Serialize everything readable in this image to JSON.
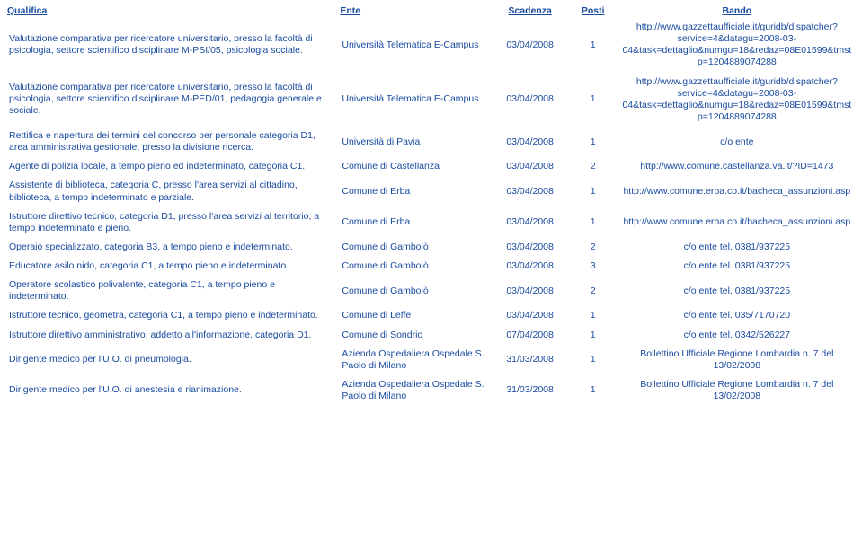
{
  "headers": {
    "qualifica": "Qualifica",
    "ente": "Ente",
    "scadenza": "Scadenza",
    "posti": "Posti",
    "bando": "Bando"
  },
  "rows": [
    {
      "qualifica": "Valutazione comparativa per ricercatore universitario, presso la facoltà di psicologia, settore scientifico disciplinare M-PSI/05, psicologia sociale.",
      "ente": "Università Telematica E-Campus",
      "scadenza": "03/04/2008",
      "posti": "1",
      "bando": "http://www.gazzettaufficiale.it/guridb/dispatcher?service=4&datagu=2008-03-04&task=dettaglio&numgu=18&redaz=08E01599&tmstp=1204889074288"
    },
    {
      "qualifica": "Valutazione comparativa per ricercatore universitario, presso la facoltà di psicologia, settore scientifico disciplinare M-PED/01, pedagogia generale e sociale.",
      "ente": "Università Telematica E-Campus",
      "scadenza": "03/04/2008",
      "posti": "1",
      "bando": "http://www.gazzettaufficiale.it/guridb/dispatcher?service=4&datagu=2008-03-04&task=dettaglio&numgu=18&redaz=08E01599&tmstp=1204889074288"
    },
    {
      "qualifica": "Rettifica e riapertura dei termini del concorso per personale categoria D1, area amministrativa gestionale, presso la divisione ricerca.",
      "ente": "Università di Pavia",
      "scadenza": "03/04/2008",
      "posti": "1",
      "bando": "c/o ente"
    },
    {
      "qualifica": "Agente di polizia locale, a tempo pieno ed indeterminato, categoria C1.",
      "ente": "Comune di Castellanza",
      "scadenza": "03/04/2008",
      "posti": "2",
      "bando": "http://www.comune.castellanza.va.it/?ID=1473"
    },
    {
      "qualifica": "Assistente di biblioteca, categoria C, presso l'area servizi al cittadino, biblioteca, a tempo indeterminato e parziale.",
      "ente": "Comune di Erba",
      "scadenza": "03/04/2008",
      "posti": "1",
      "bando": "http://www.comune.erba.co.it/bacheca_assunzioni.asp"
    },
    {
      "qualifica": "Istruttore direttivo tecnico, categoria D1, presso l'area servizi al territorio, a tempo indeterminato e pieno.",
      "ente": "Comune di Erba",
      "scadenza": "03/04/2008",
      "posti": "1",
      "bando": "http://www.comune.erba.co.it/bacheca_assunzioni.asp"
    },
    {
      "qualifica": "Operaio specializzato, categoria B3, a tempo pieno e indeterminato.",
      "ente": "Comune di Gambolò",
      "scadenza": "03/04/2008",
      "posti": "2",
      "bando": "c/o ente tel. 0381/937225"
    },
    {
      "qualifica": "Educatore asilo nido, categoria C1, a tempo pieno e indeterminato.",
      "ente": "Comune di Gambolò",
      "scadenza": "03/04/2008",
      "posti": "3",
      "bando": "c/o ente tel. 0381/937225"
    },
    {
      "qualifica": "Operatore scolastico polivalente, categoria C1, a tempo pieno e indeterminato.",
      "ente": "Comune di Gambolò",
      "scadenza": "03/04/2008",
      "posti": "2",
      "bando": "c/o ente tel. 0381/937225"
    },
    {
      "qualifica": "Istruttore tecnico, geometra, categoria C1, a tempo pieno e indeterminato.",
      "ente": "Comune di Leffe",
      "scadenza": "03/04/2008",
      "posti": "1",
      "bando": "c/o ente tel. 035/7170720"
    },
    {
      "qualifica": "Istruttore direttivo amministrativo, addetto all'informazione, categoria D1.",
      "ente": "Comune di Sondrio",
      "scadenza": "07/04/2008",
      "posti": "1",
      "bando": "c/o ente tel. 0342/526227"
    },
    {
      "qualifica": "Dirigente medico per l'U.O. di pneumologia.",
      "ente": "Azienda Ospedaliera Ospedale S. Paolo di Milano",
      "scadenza": "31/03/2008",
      "posti": "1",
      "bando": "Bollettino Ufficiale Regione Lombardia n. 7 del 13/02/2008"
    },
    {
      "qualifica": "Dirigente medico per l'U.O. di anestesia e rianimazione.",
      "ente": "Azienda Ospedaliera Ospedale S. Paolo di Milano",
      "scadenza": "31/03/2008",
      "posti": "1",
      "bando": "Bollettino Ufficiale Regione Lombardia n. 7 del 13/02/2008"
    }
  ]
}
